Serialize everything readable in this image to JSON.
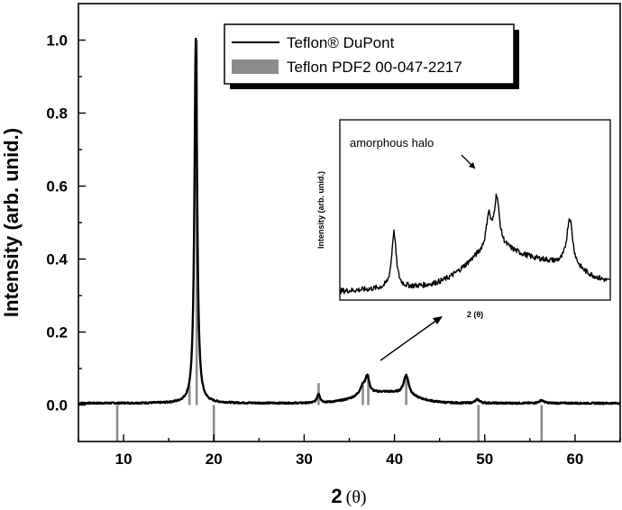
{
  "chart_data": {
    "type": "line",
    "xlabel_main": "2",
    "xlabel_unit": "(θ)",
    "ylabel": "Intensity (arb. unid.)",
    "xlim": [
      5,
      65
    ],
    "ylim": [
      -0.1,
      1.1
    ],
    "xticks": [
      10,
      20,
      30,
      40,
      50,
      60
    ],
    "yticks": [
      0.0,
      0.2,
      0.4,
      0.6,
      0.8,
      1.0
    ],
    "xtick_labels": [
      "10",
      "20",
      "30",
      "40",
      "50",
      "60"
    ],
    "ytick_labels": [
      "0.0",
      "0.2",
      "0.4",
      "0.6",
      "0.8",
      "1.0"
    ],
    "grid": false,
    "legend_position": "top-center",
    "series": [
      {
        "name": "Teflon® DuPont",
        "style": "line",
        "color": "#000000",
        "peaks": [
          {
            "x": 18.0,
            "height": 1.0,
            "width": 0.18
          },
          {
            "x": 31.6,
            "height": 0.025,
            "width": 0.2
          },
          {
            "x": 36.5,
            "height": 0.025,
            "width": 0.4
          },
          {
            "x": 37.0,
            "height": 0.045,
            "width": 0.25
          },
          {
            "x": 41.3,
            "height": 0.055,
            "width": 0.35
          },
          {
            "x": 49.2,
            "height": 0.01,
            "width": 0.3
          },
          {
            "x": 56.3,
            "height": 0.008,
            "width": 0.3
          }
        ],
        "baseline": 0.005,
        "humps": [
          {
            "x": 39.0,
            "height": 0.03,
            "width": 4.0
          }
        ]
      },
      {
        "name": "Teflon PDF2 00-047-2217",
        "style": "sticks",
        "color": "#8c8c8c",
        "x": [
          9.3,
          17.3,
          18.1,
          20.0,
          31.6,
          36.5,
          37.1,
          41.3,
          49.3,
          56.3
        ],
        "values": [
          -0.1,
          0.055,
          1.0,
          -0.1,
          0.06,
          0.055,
          0.085,
          0.08,
          -0.1,
          -0.1
        ]
      }
    ],
    "inset": {
      "annotation": "amorphous halo",
      "ylabel": "Intensity (arb. unid.)",
      "xlabel": "2 (θ)",
      "xlim": [
        30,
        60
      ],
      "peaks": [
        {
          "x": 36.0,
          "height": 0.62,
          "width": 0.3
        },
        {
          "x": 46.5,
          "height": 0.35,
          "width": 0.3
        },
        {
          "x": 47.4,
          "height": 0.55,
          "width": 0.35
        },
        {
          "x": 55.5,
          "height": 0.55,
          "width": 0.4
        }
      ]
    }
  }
}
